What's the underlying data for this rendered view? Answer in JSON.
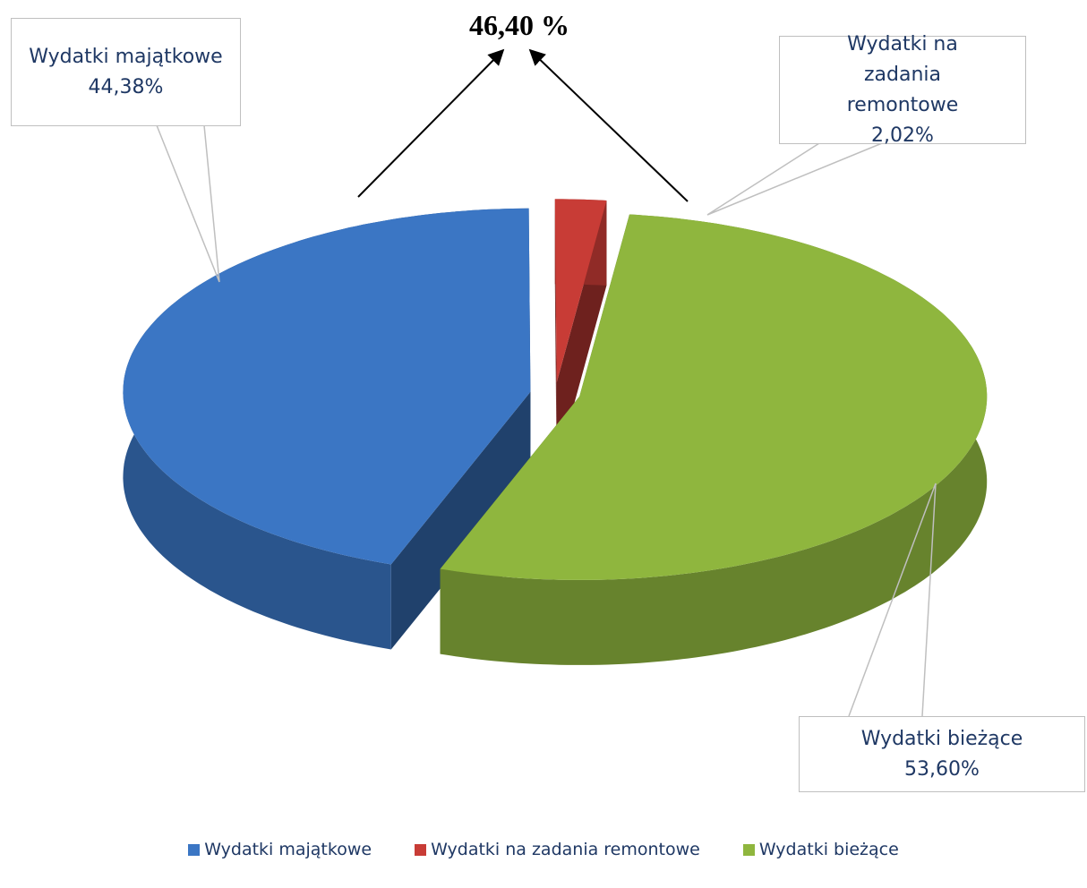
{
  "chart_data": {
    "type": "pie3d",
    "categories": [
      "Wydatki majątkowe",
      "Wydatki na zadania remontowe",
      "Wydatki bieżące"
    ],
    "values": [
      44.38,
      2.02,
      53.6
    ],
    "value_labels": [
      "44,38%",
      "2,02%",
      "53,60%"
    ],
    "colors": [
      "#3b76c4",
      "#c83c36",
      "#8fb63e"
    ],
    "annotation": "46,40 %",
    "legend": "bottom"
  }
}
